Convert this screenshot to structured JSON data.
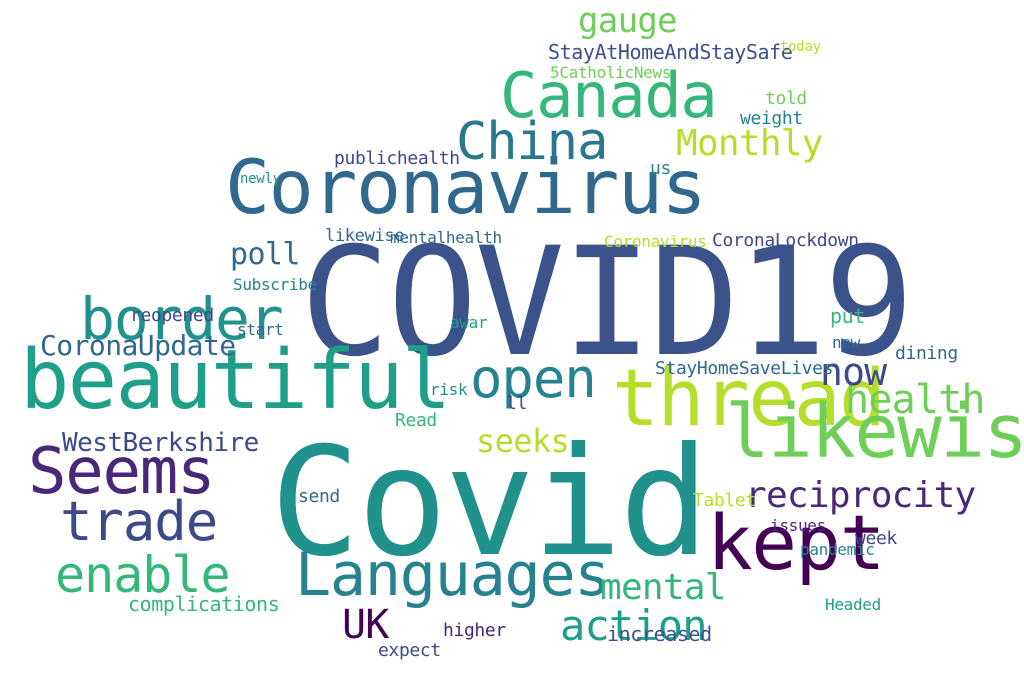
{
  "words": [
    {
      "text": "COVID19",
      "color": "#3b528b"
    },
    {
      "text": "Covid",
      "color": "#21918c"
    },
    {
      "text": "Coronavirus",
      "color": "#31688e"
    },
    {
      "text": "beautiful",
      "color": "#1f9e89"
    },
    {
      "text": "thread",
      "color": "#b5de2b"
    },
    {
      "text": "Canada",
      "color": "#35b779"
    },
    {
      "text": "likewise",
      "color": "#6ece58"
    },
    {
      "text": "Languages",
      "color": "#26828e"
    },
    {
      "text": "kept",
      "color": "#440154"
    },
    {
      "text": "Seems",
      "color": "#482878"
    },
    {
      "text": "China",
      "color": "#2a788e"
    },
    {
      "text": "open",
      "color": "#26828e"
    },
    {
      "text": "border",
      "color": "#21918c"
    },
    {
      "text": "trade",
      "color": "#3e4989"
    },
    {
      "text": "enable",
      "color": "#35b779"
    },
    {
      "text": "action",
      "color": "#1f9e89"
    },
    {
      "text": "reciprocity",
      "color": "#482878"
    },
    {
      "text": "health",
      "color": "#6ece58"
    },
    {
      "text": "mental",
      "color": "#35b779"
    },
    {
      "text": "now",
      "color": "#3e4989"
    },
    {
      "text": "Monthly",
      "color": "#b5de2b"
    },
    {
      "text": "gauge",
      "color": "#6ece58"
    },
    {
      "text": "CoronaUpdate",
      "color": "#31688e"
    },
    {
      "text": "WestBerkshire",
      "color": "#3e4989"
    },
    {
      "text": "UK",
      "color": "#440154"
    },
    {
      "text": "poll",
      "color": "#31688e"
    },
    {
      "text": "seeks",
      "color": "#b5de2b"
    },
    {
      "text": "StayAtHomeAndStaySafe",
      "color": "#3b528b"
    },
    {
      "text": "5CatholicNews",
      "color": "#6ece58"
    },
    {
      "text": "complications",
      "color": "#35b779"
    },
    {
      "text": "StayHomeSaveLives",
      "color": "#31688e"
    },
    {
      "text": "CoronaLockdown",
      "color": "#3e4989"
    },
    {
      "text": "publichealth",
      "color": "#3e4989"
    },
    {
      "text": "mentalhealth",
      "color": "#31688e"
    },
    {
      "text": "likewise",
      "color": "#31688e"
    },
    {
      "text": "weight",
      "color": "#26828e"
    },
    {
      "text": "told",
      "color": "#6ece58"
    },
    {
      "text": "us",
      "color": "#26828e"
    },
    {
      "text": "put",
      "color": "#35b779"
    },
    {
      "text": "increased",
      "color": "#3b528b"
    },
    {
      "text": "Tablet",
      "color": "#b5de2b"
    },
    {
      "text": "higher",
      "color": "#482878"
    },
    {
      "text": "expect",
      "color": "#3e4989"
    },
    {
      "text": "Headed",
      "color": "#1f9e89"
    },
    {
      "text": "pandemic",
      "color": "#26828e"
    },
    {
      "text": "dining",
      "color": "#31688e"
    },
    {
      "text": "week",
      "color": "#3e4989"
    },
    {
      "text": "issues",
      "color": "#482878"
    },
    {
      "text": "reopened",
      "color": "#3e4989"
    },
    {
      "text": "Subscribe",
      "color": "#26828e"
    },
    {
      "text": "start",
      "color": "#31688e"
    },
    {
      "text": "send",
      "color": "#31688e"
    },
    {
      "text": "Read",
      "color": "#35b779"
    },
    {
      "text": "risk",
      "color": "#21918c"
    },
    {
      "text": "today",
      "color": "#b5de2b"
    },
    {
      "text": "new",
      "color": "#31688e"
    },
    {
      "text": "newly",
      "color": "#21918c"
    },
    {
      "text": "Coronavirus",
      "color": "#b5de2b"
    },
    {
      "text": "awar",
      "color": "#1f9e89"
    },
    {
      "text": "ll",
      "color": "#3e4989"
    }
  ]
}
